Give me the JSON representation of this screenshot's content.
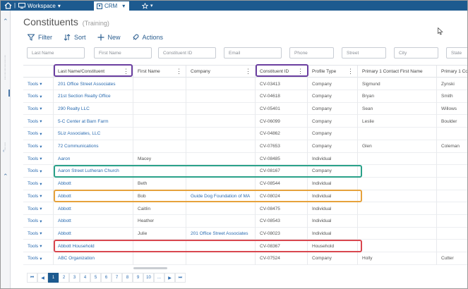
{
  "topbar": {
    "workspace_label": "Workspace",
    "crm_label": "CRM"
  },
  "page": {
    "title": "Constituents",
    "subtitle": "(Training)"
  },
  "actions": {
    "filter": "Filter",
    "sort": "Sort",
    "new": "New",
    "actions": "Actions"
  },
  "filters": {
    "last_name": "Last Name",
    "first_name": "First Name",
    "constituent_id": "Constituent ID",
    "email": "Email",
    "phone": "Phone",
    "street": "Street",
    "city": "City",
    "state": "State"
  },
  "grid": {
    "headers": {
      "last_name": "Last Name/Constituent",
      "first_name": "First Name",
      "company": "Company",
      "constituent_id": "Constituent ID",
      "profile_type": "Profile Type",
      "contact_first": "Primary 1 Contact First Name",
      "contact_last": "Primary 1 Co"
    },
    "tools_label": "Tools",
    "rows": [
      {
        "name": "201 Office Street Associates",
        "first": "",
        "company": "",
        "id": "CV-03413",
        "type": "Company",
        "cfirst": "Sigmund",
        "clast": "Zynski"
      },
      {
        "name": "21st Section Realty Office",
        "first": "",
        "company": "",
        "id": "CV-04618",
        "type": "Company",
        "cfirst": "Bryan",
        "clast": "Smith"
      },
      {
        "name": "290 Realty LLC",
        "first": "",
        "company": "",
        "id": "CV-05401",
        "type": "Company",
        "cfirst": "Sean",
        "clast": "Willows"
      },
      {
        "name": "5-C Center at Barn Farm",
        "first": "",
        "company": "",
        "id": "CV-06099",
        "type": "Company",
        "cfirst": "Leslie",
        "clast": "Boulder"
      },
      {
        "name": "5Liz Associates, LLC",
        "first": "",
        "company": "",
        "id": "CV-04862",
        "type": "Company",
        "cfirst": "",
        "clast": ""
      },
      {
        "name": "72 Communications",
        "first": "",
        "company": "",
        "id": "CV-07653",
        "type": "Company",
        "cfirst": "Glen",
        "clast": "Coleman"
      },
      {
        "name": "Aaron",
        "first": "Macey",
        "company": "",
        "id": "CV-08485",
        "type": "Individual",
        "cfirst": "",
        "clast": ""
      },
      {
        "name": "Aaron Street Lutheran Church",
        "first": "",
        "company": "",
        "id": "CV-08167",
        "type": "Company",
        "cfirst": "",
        "clast": ""
      },
      {
        "name": "Abbott",
        "first": "Beth",
        "company": "",
        "id": "CV-08544",
        "type": "Individual",
        "cfirst": "",
        "clast": ""
      },
      {
        "name": "Abbott",
        "first": "Bob",
        "company": "Guide Dog Foundation of MA",
        "id": "CV-08024",
        "type": "Individual",
        "cfirst": "",
        "clast": ""
      },
      {
        "name": "Abbott",
        "first": "Caitlin",
        "company": "",
        "id": "CV-08475",
        "type": "Individual",
        "cfirst": "",
        "clast": ""
      },
      {
        "name": "Abbott",
        "first": "Heather",
        "company": "",
        "id": "CV-08543",
        "type": "Individual",
        "cfirst": "",
        "clast": ""
      },
      {
        "name": "Abbott",
        "first": "Julie",
        "company": "201 Office Street Associates",
        "id": "CV-08023",
        "type": "Individual",
        "cfirst": "",
        "clast": ""
      },
      {
        "name": "Abbott Household",
        "first": "",
        "company": "",
        "id": "CV-08367",
        "type": "Household",
        "cfirst": "",
        "clast": ""
      },
      {
        "name": "ABC Organization",
        "first": "",
        "company": "",
        "id": "CV-07524",
        "type": "Company",
        "cfirst": "Holly",
        "clast": "Cutter"
      }
    ]
  },
  "pager": {
    "pages": [
      "1",
      "2",
      "3",
      "4",
      "5",
      "6",
      "7",
      "8",
      "9",
      "10",
      "..."
    ],
    "active": "1"
  },
  "colors": {
    "brand": "#1d5a8f",
    "link": "#2a6bb0",
    "purple": "#6b3fa0",
    "teal": "#2aa189",
    "orange": "#e6a23c",
    "red": "#d9474f"
  }
}
